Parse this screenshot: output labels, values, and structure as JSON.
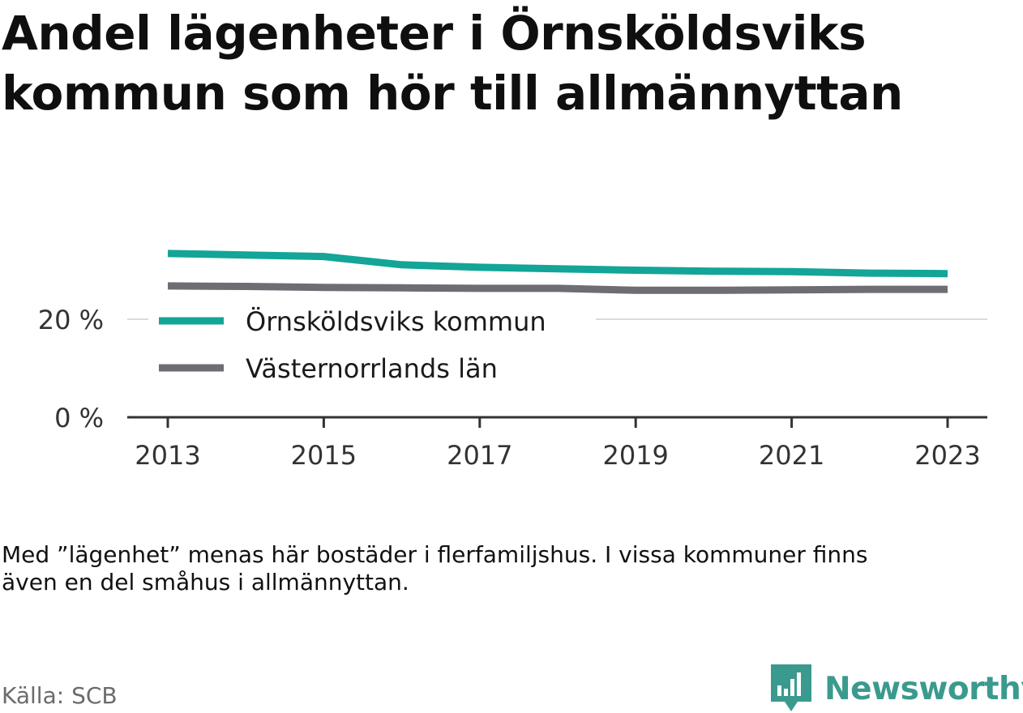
{
  "title_lines": [
    "Andel lägenheter i Örnsköldsviks",
    "kommun som hör till allmännyttan"
  ],
  "note_lines": [
    "Med ”lägenhet” menas här bostäder i flerfamiljshus. I vissa kommuner finns",
    "även en del småhus i allmännyttan."
  ],
  "source": "Källa: SCB",
  "brand": {
    "name": "Newsworthy",
    "icon": "bar-chart-speech-bubble-icon",
    "color": "#3a9a8e"
  },
  "chart_data": {
    "type": "line",
    "x": [
      2013,
      2014,
      2015,
      2016,
      2017,
      2018,
      2019,
      2020,
      2021,
      2022,
      2023
    ],
    "xticks": [
      "2013",
      "2015",
      "2017",
      "2019",
      "2021",
      "2023"
    ],
    "yticks": [
      "0 %",
      "20 %"
    ],
    "ylim": [
      0,
      50
    ],
    "grid": true,
    "legend_position": "inside, below the lines",
    "series": [
      {
        "name": "Örnsköldsviks kommun",
        "color": "#12a598",
        "values": [
          33.4,
          33.1,
          32.8,
          31.1,
          30.6,
          30.3,
          30.0,
          29.8,
          29.7,
          29.4,
          29.3
        ]
      },
      {
        "name": "Västernorrlands län",
        "color": "#6e6d73",
        "values": [
          26.8,
          26.7,
          26.5,
          26.4,
          26.3,
          26.3,
          25.9,
          25.9,
          26.0,
          26.1,
          26.1
        ]
      }
    ]
  }
}
